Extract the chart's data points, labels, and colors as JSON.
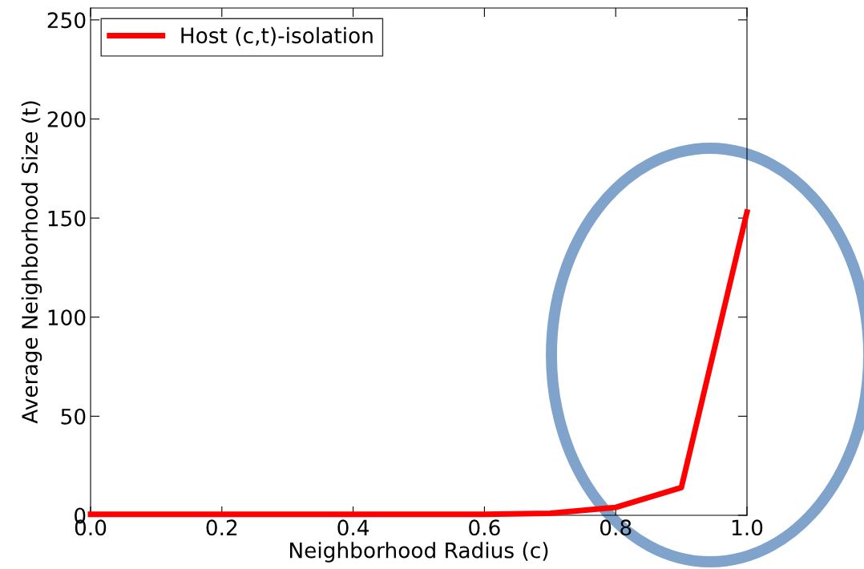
{
  "chart_data": {
    "type": "line",
    "xlabel": "Neighborhood Radius (c)",
    "ylabel": "Average Neighborhood Size (t)",
    "x": [
      0.0,
      0.1,
      0.2,
      0.3,
      0.4,
      0.5,
      0.6,
      0.7,
      0.8,
      0.9,
      1.0
    ],
    "series": [
      {
        "name": "Host (c,t)-isolation",
        "color": "#ff0000",
        "values": [
          0.5,
          0.5,
          0.5,
          0.5,
          0.5,
          0.5,
          0.5,
          1,
          4,
          14,
          153
        ]
      }
    ],
    "xlim": [
      0.0,
      1.0
    ],
    "xticks": [
      {
        "value": 0,
        "label": "0.0"
      },
      0.2,
      0.4,
      0.6,
      0.8,
      {
        "value": 1,
        "label": "1.0"
      }
    ],
    "ylim": [
      0,
      256
    ],
    "yticks": [
      0,
      50,
      100,
      150,
      200,
      250
    ],
    "legend": "top left",
    "grid": false,
    "marker": "none",
    "line_style": "solid"
  }
}
